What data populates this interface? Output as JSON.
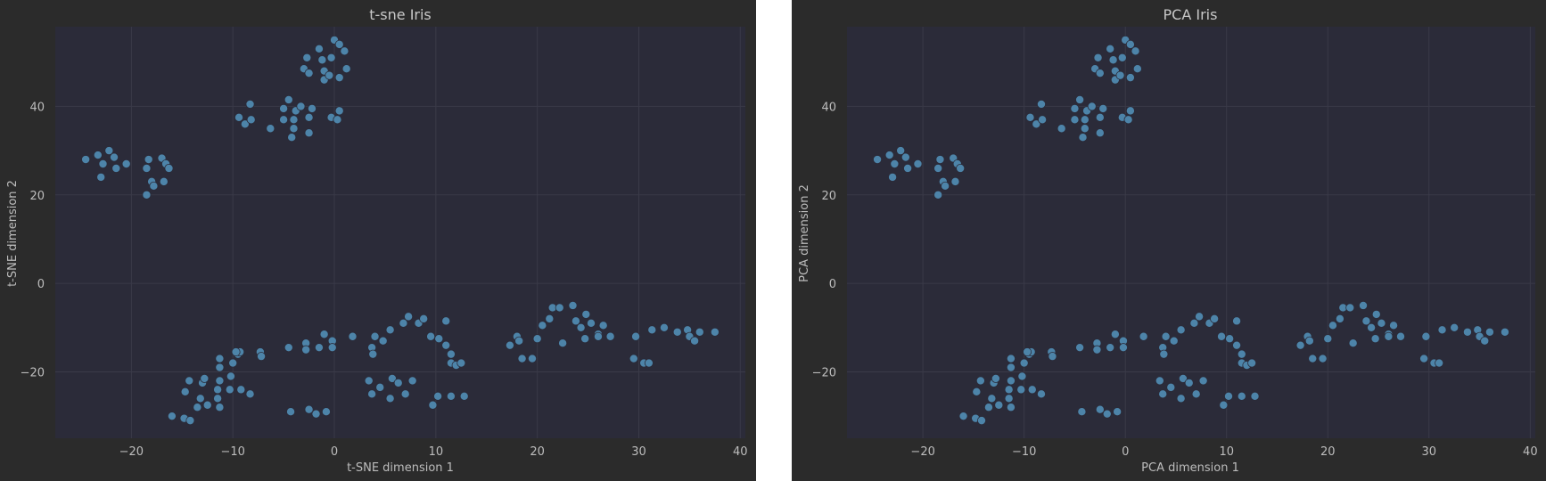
{
  "colors": {
    "background": "#2b2b2b",
    "plot_background": "#2b2b39",
    "grid": "#3a3a48",
    "point": "#4d84a9",
    "text": "#bdbdbd"
  },
  "chart_data": [
    {
      "type": "scatter",
      "title": "t-sne Iris",
      "xlabel": "t-SNE dimension 1",
      "ylabel": "t-SNE dimension 2",
      "xlim": [
        -27.5,
        40.5
      ],
      "ylim": [
        -35,
        58
      ],
      "xticks": [
        -20,
        -10,
        0,
        10,
        20,
        30,
        40
      ],
      "yticks": [
        -20,
        0,
        20,
        40
      ],
      "grid": true,
      "legend": "none",
      "points": [
        [
          -24.5,
          28
        ],
        [
          -23.3,
          29
        ],
        [
          -22.8,
          27
        ],
        [
          -22.2,
          30
        ],
        [
          -21.7,
          28.5
        ],
        [
          -21.5,
          26
        ],
        [
          -23,
          24
        ],
        [
          -20.5,
          27
        ],
        [
          -18.3,
          28
        ],
        [
          -18.5,
          26
        ],
        [
          -17,
          28.3
        ],
        [
          -16.6,
          27
        ],
        [
          -18,
          23
        ],
        [
          -17.8,
          22
        ],
        [
          -16.3,
          26
        ],
        [
          -16.8,
          23
        ],
        [
          -18.5,
          20
        ],
        [
          -9.4,
          37.5
        ],
        [
          -8.3,
          40.5
        ],
        [
          -8.8,
          36
        ],
        [
          -8.2,
          37
        ],
        [
          -6.3,
          35
        ],
        [
          -5,
          37
        ],
        [
          -4.5,
          41.5
        ],
        [
          -5,
          39.5
        ],
        [
          -3.8,
          39
        ],
        [
          -4,
          37
        ],
        [
          -4,
          35
        ],
        [
          -4.2,
          33
        ],
        [
          -3.3,
          40
        ],
        [
          -2.5,
          37.5
        ],
        [
          -2.5,
          34
        ],
        [
          -2.2,
          39.5
        ],
        [
          -3,
          48.5
        ],
        [
          -2.7,
          51
        ],
        [
          -2.5,
          47.5
        ],
        [
          -1.5,
          53
        ],
        [
          -1.2,
          50.5
        ],
        [
          -1,
          48
        ],
        [
          -1,
          46
        ],
        [
          -0.5,
          47
        ],
        [
          -0.3,
          51
        ],
        [
          0,
          55
        ],
        [
          0.5,
          54
        ],
        [
          1,
          52.5
        ],
        [
          1.2,
          48.5
        ],
        [
          0.5,
          46.5
        ],
        [
          -0.3,
          37.5
        ],
        [
          0.3,
          37
        ],
        [
          0.5,
          39
        ],
        [
          -16,
          -30
        ],
        [
          -14.8,
          -30.5
        ],
        [
          -14.2,
          -31
        ],
        [
          -14.7,
          -24.5
        ],
        [
          -14.3,
          -22
        ],
        [
          -13.5,
          -28
        ],
        [
          -13,
          -22.5
        ],
        [
          -12.8,
          -21.5
        ],
        [
          -13.2,
          -26
        ],
        [
          -12.5,
          -27.5
        ],
        [
          -11.5,
          -26
        ],
        [
          -11.3,
          -22
        ],
        [
          -11.5,
          -24
        ],
        [
          -11.3,
          -28
        ],
        [
          -11.3,
          -17
        ],
        [
          -11.3,
          -19
        ],
        [
          -10.2,
          -21
        ],
        [
          -10.3,
          -24
        ],
        [
          -10,
          -18
        ],
        [
          -9.5,
          -16
        ],
        [
          -9.3,
          -15.5
        ],
        [
          -9.7,
          -15.5
        ],
        [
          -9.2,
          -24
        ],
        [
          -8.3,
          -25
        ],
        [
          -7.3,
          -15.5
        ],
        [
          -7.2,
          -16.5
        ],
        [
          -4.5,
          -14.5
        ],
        [
          -2.8,
          -13.5
        ],
        [
          -2.8,
          -15
        ],
        [
          -1.5,
          -14.5
        ],
        [
          -1,
          -11.5
        ],
        [
          -0.2,
          -13
        ],
        [
          -0.2,
          -14.5
        ],
        [
          1.8,
          -12
        ],
        [
          -4.3,
          -29
        ],
        [
          -2.5,
          -28.5
        ],
        [
          -1.8,
          -29.5
        ],
        [
          -0.8,
          -29
        ],
        [
          3.7,
          -14.5
        ],
        [
          3.8,
          -16
        ],
        [
          4,
          -12
        ],
        [
          4.8,
          -13
        ],
        [
          5.5,
          -10.5
        ],
        [
          3.4,
          -22
        ],
        [
          3.7,
          -25
        ],
        [
          4.5,
          -23.5
        ],
        [
          5.5,
          -26
        ],
        [
          5.7,
          -21.5
        ],
        [
          6.3,
          -22.5
        ],
        [
          6.8,
          -9
        ],
        [
          7.3,
          -7.5
        ],
        [
          7,
          -25
        ],
        [
          7.7,
          -22
        ],
        [
          8.3,
          -9
        ],
        [
          8.8,
          -8
        ],
        [
          9.5,
          -12
        ],
        [
          10.3,
          -12.5
        ],
        [
          11,
          -14
        ],
        [
          11,
          -8.5
        ],
        [
          11.5,
          -16
        ],
        [
          11.5,
          -18
        ],
        [
          12,
          -18.5
        ],
        [
          12.5,
          -18
        ],
        [
          9.7,
          -27.5
        ],
        [
          10.2,
          -25.5
        ],
        [
          11.5,
          -25.5
        ],
        [
          12.8,
          -25.5
        ],
        [
          17.3,
          -14
        ],
        [
          18,
          -12
        ],
        [
          18.2,
          -13
        ],
        [
          18.5,
          -17
        ],
        [
          19.5,
          -17
        ],
        [
          20,
          -12.5
        ],
        [
          20.5,
          -9.5
        ],
        [
          21.2,
          -8
        ],
        [
          21.5,
          -5.5
        ],
        [
          22.2,
          -5.5
        ],
        [
          22.5,
          -13.5
        ],
        [
          23.5,
          -5
        ],
        [
          23.8,
          -8.5
        ],
        [
          24.3,
          -10
        ],
        [
          24.7,
          -12.5
        ],
        [
          24.8,
          -7
        ],
        [
          25.3,
          -9
        ],
        [
          26,
          -11.5
        ],
        [
          26,
          -12
        ],
        [
          26.5,
          -9.5
        ],
        [
          27.2,
          -12
        ],
        [
          29.5,
          -17
        ],
        [
          29.7,
          -12
        ],
        [
          30.5,
          -18
        ],
        [
          31,
          -18
        ],
        [
          31.3,
          -10.5
        ],
        [
          32.5,
          -10
        ],
        [
          33.8,
          -11
        ],
        [
          34.8,
          -10.5
        ],
        [
          35,
          -12
        ],
        [
          35.5,
          -13
        ],
        [
          36,
          -11
        ],
        [
          37.5,
          -11
        ]
      ]
    },
    {
      "type": "scatter",
      "title": "PCA Iris",
      "xlabel": "PCA dimension 1",
      "ylabel": "PCA dimension 2",
      "xlim": [
        -27.5,
        40.5
      ],
      "ylim": [
        -35,
        58
      ],
      "xticks": [
        -20,
        -10,
        0,
        10,
        20,
        30,
        40
      ],
      "yticks": [
        -20,
        0,
        20,
        40
      ],
      "grid": true,
      "legend": "none",
      "points": [
        [
          -24.5,
          28
        ],
        [
          -23.3,
          29
        ],
        [
          -22.8,
          27
        ],
        [
          -22.2,
          30
        ],
        [
          -21.7,
          28.5
        ],
        [
          -21.5,
          26
        ],
        [
          -23,
          24
        ],
        [
          -20.5,
          27
        ],
        [
          -18.3,
          28
        ],
        [
          -18.5,
          26
        ],
        [
          -17,
          28.3
        ],
        [
          -16.6,
          27
        ],
        [
          -18,
          23
        ],
        [
          -17.8,
          22
        ],
        [
          -16.3,
          26
        ],
        [
          -16.8,
          23
        ],
        [
          -18.5,
          20
        ],
        [
          -9.4,
          37.5
        ],
        [
          -8.3,
          40.5
        ],
        [
          -8.8,
          36
        ],
        [
          -8.2,
          37
        ],
        [
          -6.3,
          35
        ],
        [
          -5,
          37
        ],
        [
          -4.5,
          41.5
        ],
        [
          -5,
          39.5
        ],
        [
          -3.8,
          39
        ],
        [
          -4,
          37
        ],
        [
          -4,
          35
        ],
        [
          -4.2,
          33
        ],
        [
          -3.3,
          40
        ],
        [
          -2.5,
          37.5
        ],
        [
          -2.5,
          34
        ],
        [
          -2.2,
          39.5
        ],
        [
          -3,
          48.5
        ],
        [
          -2.7,
          51
        ],
        [
          -2.5,
          47.5
        ],
        [
          -1.5,
          53
        ],
        [
          -1.2,
          50.5
        ],
        [
          -1,
          48
        ],
        [
          -1,
          46
        ],
        [
          -0.5,
          47
        ],
        [
          -0.3,
          51
        ],
        [
          0,
          55
        ],
        [
          0.5,
          54
        ],
        [
          1,
          52.5
        ],
        [
          1.2,
          48.5
        ],
        [
          0.5,
          46.5
        ],
        [
          -0.3,
          37.5
        ],
        [
          0.3,
          37
        ],
        [
          0.5,
          39
        ],
        [
          -16,
          -30
        ],
        [
          -14.8,
          -30.5
        ],
        [
          -14.2,
          -31
        ],
        [
          -14.7,
          -24.5
        ],
        [
          -14.3,
          -22
        ],
        [
          -13.5,
          -28
        ],
        [
          -13,
          -22.5
        ],
        [
          -12.8,
          -21.5
        ],
        [
          -13.2,
          -26
        ],
        [
          -12.5,
          -27.5
        ],
        [
          -11.5,
          -26
        ],
        [
          -11.3,
          -22
        ],
        [
          -11.5,
          -24
        ],
        [
          -11.3,
          -28
        ],
        [
          -11.3,
          -17
        ],
        [
          -11.3,
          -19
        ],
        [
          -10.2,
          -21
        ],
        [
          -10.3,
          -24
        ],
        [
          -10,
          -18
        ],
        [
          -9.5,
          -16
        ],
        [
          -9.3,
          -15.5
        ],
        [
          -9.7,
          -15.5
        ],
        [
          -9.2,
          -24
        ],
        [
          -8.3,
          -25
        ],
        [
          -7.3,
          -15.5
        ],
        [
          -7.2,
          -16.5
        ],
        [
          -4.5,
          -14.5
        ],
        [
          -2.8,
          -13.5
        ],
        [
          -2.8,
          -15
        ],
        [
          -1.5,
          -14.5
        ],
        [
          -1,
          -11.5
        ],
        [
          -0.2,
          -13
        ],
        [
          -0.2,
          -14.5
        ],
        [
          1.8,
          -12
        ],
        [
          -4.3,
          -29
        ],
        [
          -2.5,
          -28.5
        ],
        [
          -1.8,
          -29.5
        ],
        [
          -0.8,
          -29
        ],
        [
          3.7,
          -14.5
        ],
        [
          3.8,
          -16
        ],
        [
          4,
          -12
        ],
        [
          4.8,
          -13
        ],
        [
          5.5,
          -10.5
        ],
        [
          3.4,
          -22
        ],
        [
          3.7,
          -25
        ],
        [
          4.5,
          -23.5
        ],
        [
          5.5,
          -26
        ],
        [
          5.7,
          -21.5
        ],
        [
          6.3,
          -22.5
        ],
        [
          6.8,
          -9
        ],
        [
          7.3,
          -7.5
        ],
        [
          7,
          -25
        ],
        [
          7.7,
          -22
        ],
        [
          8.3,
          -9
        ],
        [
          8.8,
          -8
        ],
        [
          9.5,
          -12
        ],
        [
          10.3,
          -12.5
        ],
        [
          11,
          -14
        ],
        [
          11,
          -8.5
        ],
        [
          11.5,
          -16
        ],
        [
          11.5,
          -18
        ],
        [
          12,
          -18.5
        ],
        [
          12.5,
          -18
        ],
        [
          9.7,
          -27.5
        ],
        [
          10.2,
          -25.5
        ],
        [
          11.5,
          -25.5
        ],
        [
          12.8,
          -25.5
        ],
        [
          17.3,
          -14
        ],
        [
          18,
          -12
        ],
        [
          18.2,
          -13
        ],
        [
          18.5,
          -17
        ],
        [
          19.5,
          -17
        ],
        [
          20,
          -12.5
        ],
        [
          20.5,
          -9.5
        ],
        [
          21.2,
          -8
        ],
        [
          21.5,
          -5.5
        ],
        [
          22.2,
          -5.5
        ],
        [
          22.5,
          -13.5
        ],
        [
          23.5,
          -5
        ],
        [
          23.8,
          -8.5
        ],
        [
          24.3,
          -10
        ],
        [
          24.7,
          -12.5
        ],
        [
          24.8,
          -7
        ],
        [
          25.3,
          -9
        ],
        [
          26,
          -11.5
        ],
        [
          26,
          -12
        ],
        [
          26.5,
          -9.5
        ],
        [
          27.2,
          -12
        ],
        [
          29.5,
          -17
        ],
        [
          29.7,
          -12
        ],
        [
          30.5,
          -18
        ],
        [
          31,
          -18
        ],
        [
          31.3,
          -10.5
        ],
        [
          32.5,
          -10
        ],
        [
          33.8,
          -11
        ],
        [
          34.8,
          -10.5
        ],
        [
          35,
          -12
        ],
        [
          35.5,
          -13
        ],
        [
          36,
          -11
        ],
        [
          37.5,
          -11
        ]
      ]
    }
  ]
}
